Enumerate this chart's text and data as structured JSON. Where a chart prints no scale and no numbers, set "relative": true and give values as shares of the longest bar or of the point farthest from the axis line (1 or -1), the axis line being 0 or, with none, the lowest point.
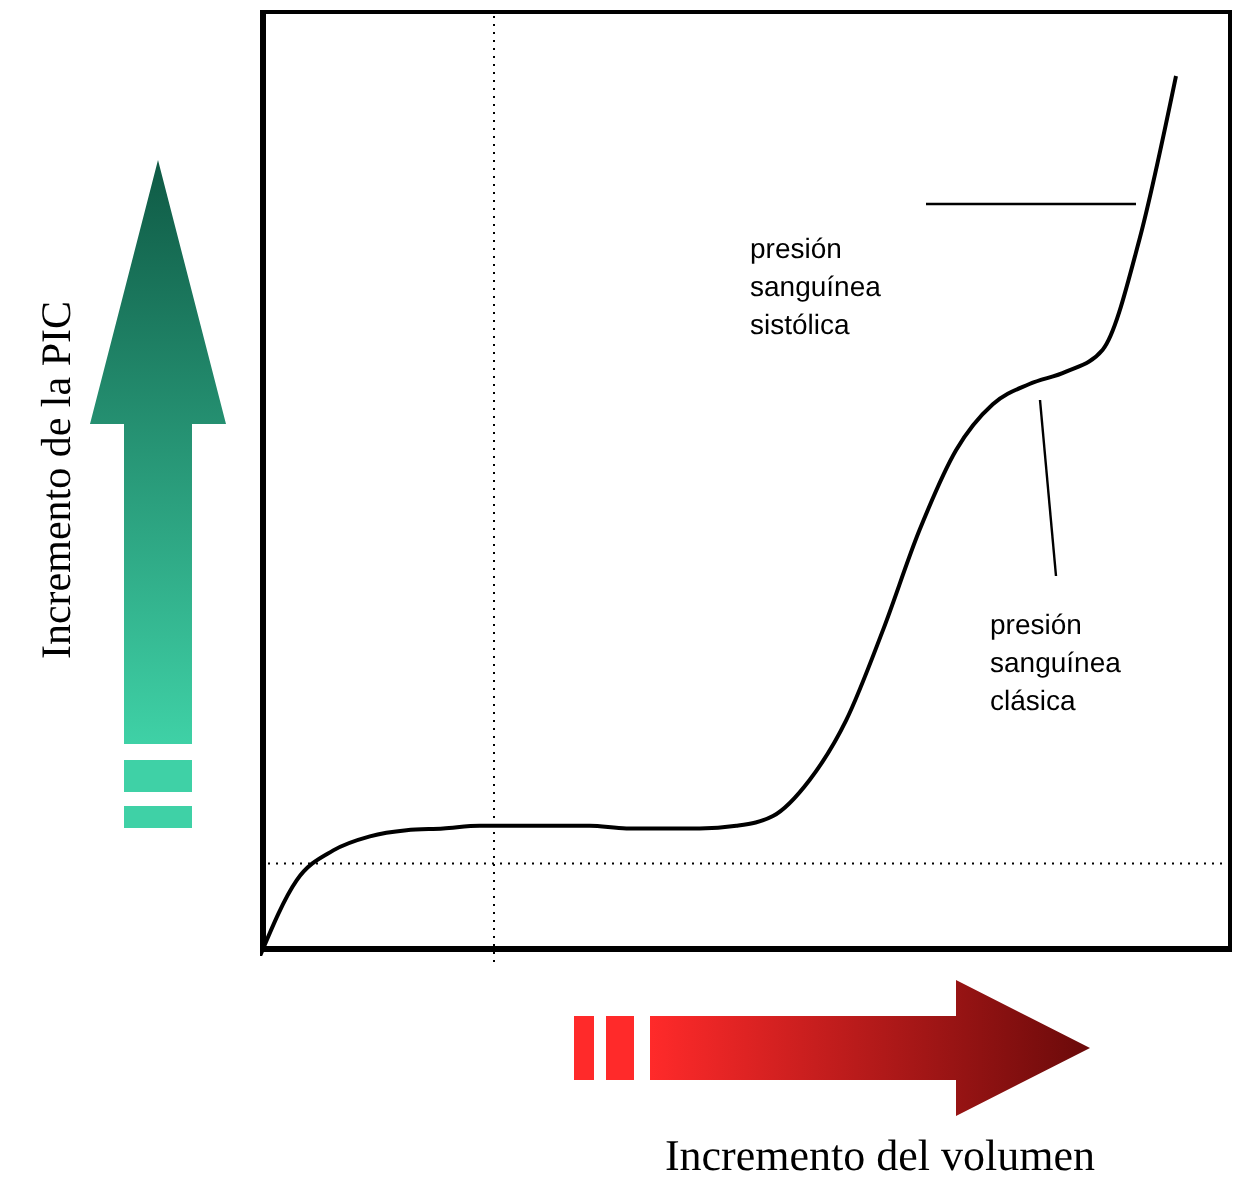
{
  "chart_data": {
    "type": "line",
    "relative": true,
    "xlabel": "Incremento del volumen",
    "ylabel": "Incremento de la PIC",
    "categories": [
      null,
      null,
      null,
      null,
      null,
      null,
      null,
      null,
      null,
      null,
      null,
      null,
      null,
      null,
      null,
      null,
      null,
      null,
      null,
      null,
      null,
      null,
      null,
      null,
      null,
      null,
      null
    ],
    "series": [
      {
        "color": "#000000",
        "values": [
          0,
          0.086,
          0.12,
          0.136,
          0.143,
          0.145,
          0.148,
          0.148,
          0.148,
          0.148,
          0.145,
          0.145,
          0.145,
          0.148,
          0.159,
          0.2,
          0.268,
          0.37,
          0.484,
          0.575,
          0.627,
          0.65,
          0.664,
          0.689,
          0.814,
          1,
          null
        ]
      }
    ],
    "ref_lines": [
      {
        "axis": "y",
        "value": 0.105,
        "line_style": "dotted",
        "color": "#000000"
      }
    ],
    "annotations": [
      "presión sanguínea sistólica",
      "presión sanguínea clásica"
    ],
    "marker": "none",
    "line_style": "solid"
  }
}
